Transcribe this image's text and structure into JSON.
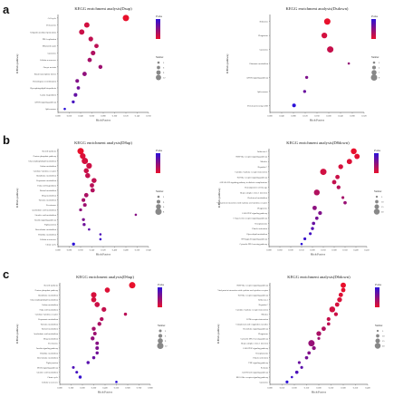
{
  "panel_letters": [
    "a",
    "b",
    "c"
  ],
  "chart_data": [
    {
      "type": "scatter",
      "title": "KEGG enrichment analysis(Dsup)",
      "xlabel": "Rich Factor",
      "ylabel": "KEGG pathway",
      "xlim": [
        0,
        0.16
      ],
      "xticks": [
        "0.000",
        "0.020",
        "0.040",
        "0.060",
        "0.080",
        "0.100",
        "0.120",
        "0.140",
        "0.160"
      ],
      "categories": [
        "Cell cycle",
        "Proteasome",
        "Ubiquitin mediated proteolysis",
        "DNA replication",
        "Mismatch repair",
        "Lysosome",
        "Cellular senescence",
        "Oocyte meiosis",
        "Basal transcription factors",
        "Homologous recombination",
        "Glycosphingolipid biosynthesis",
        "Lysine degradation",
        "mTOR signaling pathway",
        "Spliceosome"
      ],
      "x": [
        0.12,
        0.051,
        0.042,
        0.058,
        0.068,
        0.062,
        0.056,
        0.075,
        0.047,
        0.034,
        0.036,
        0.031,
        0.027,
        0.012
      ],
      "pvalue": [
        0.005,
        0.01,
        0.012,
        0.014,
        0.015,
        0.018,
        0.02,
        0.022,
        0.025,
        0.028,
        0.032,
        0.035,
        0.042,
        0.048
      ],
      "count": [
        15,
        12,
        12,
        10,
        9,
        10,
        9,
        8,
        9,
        7,
        6,
        7,
        5,
        3
      ],
      "legend_color_title": "Pvalue",
      "legend_size_title": "Number",
      "size_legend_values": [
        3,
        6,
        9,
        12
      ],
      "color_low": "#e8102c",
      "color_high": "#2b11d8",
      "legend_position": "right"
    },
    {
      "type": "scatter",
      "title": "KEGG enrichment analysis(Dsdown)",
      "xlabel": "Rich Factor",
      "ylabel": "KEGG pathway",
      "xlim": [
        0,
        0.32
      ],
      "xticks": [
        "0.000",
        "0.040",
        "0.080",
        "0.120",
        "0.160",
        "0.200",
        "0.240",
        "0.280",
        "0.320"
      ],
      "categories": [
        "Ribosome",
        "Phagosome",
        "Lysosome",
        "Glutamate metabolism",
        "mTOR signaling pathway",
        "Spliceosome",
        "Protein processing in ER"
      ],
      "x": [
        0.195,
        0.185,
        0.205,
        0.268,
        0.125,
        0.118,
        0.082
      ],
      "pvalue": [
        0.01,
        0.015,
        0.018,
        0.03,
        0.035,
        0.04,
        0.055
      ],
      "count": [
        9,
        8,
        9,
        3,
        4,
        4,
        5
      ],
      "legend_color_title": "Pvalue",
      "legend_size_title": "Number",
      "size_legend_values": [
        3,
        5,
        7,
        9
      ],
      "color_low": "#e8102c",
      "color_high": "#2b11d8",
      "legend_position": "right"
    },
    {
      "type": "scatter",
      "title": "KEGG enrichment analysis(D8up)",
      "xlabel": "Rich Factor",
      "ylabel": "KEGG pathway",
      "xlim": [
        0,
        0.64
      ],
      "xticks": [
        "0.000",
        "0.080",
        "0.160",
        "0.240",
        "0.320",
        "0.400",
        "0.480",
        "0.560",
        "0.640"
      ],
      "categories": [
        "Steroid synthesis",
        "Pentose phosphate pathway",
        "Glycerophospholipid metabolism",
        "Carbon metabolism",
        "Cytokine-cytokine receptor",
        "Glutathione metabolism",
        "Propanoate metabolism",
        "Fatty acid degradation",
        "Retinol metabolism",
        "Drug metabolism",
        "Tyrosine metabolism",
        "Peroxisome",
        "Arachidonic acid metabolism",
        "Linoleic acid metabolism",
        "Insulin signaling pathway",
        "Tight junction",
        "Beta-alanine metabolism",
        "Histidine metabolism",
        "Cellular senescence",
        "Citrate cycle"
      ],
      "x": [
        0.16,
        0.175,
        0.19,
        0.22,
        0.2,
        0.21,
        0.255,
        0.24,
        0.245,
        0.2,
        0.18,
        0.19,
        0.16,
        0.55,
        0.18,
        0.185,
        0.22,
        0.3,
        0.3,
        0.11
      ],
      "pvalue": [
        0.004,
        0.008,
        0.01,
        0.012,
        0.013,
        0.015,
        0.016,
        0.018,
        0.02,
        0.022,
        0.024,
        0.026,
        0.03,
        0.033,
        0.036,
        0.04,
        0.045,
        0.05,
        0.055,
        0.06
      ],
      "count": [
        8,
        7,
        8,
        7,
        6,
        6,
        6,
        5,
        5,
        5,
        4,
        4,
        3,
        2,
        3,
        3,
        2,
        2,
        2,
        3
      ],
      "legend_color_title": "Pvalue",
      "legend_size_title": "Number",
      "size_legend_values": [
        2,
        4,
        6,
        8
      ],
      "color_low": "#e8102c",
      "color_high": "#2b11d8",
      "legend_position": "right"
    },
    {
      "type": "scatter",
      "title": "KEGG enrichment analysis(D8down)",
      "xlabel": "Rich Factor",
      "ylabel": "KEGG pathway",
      "xlim": [
        0,
        0.45
      ],
      "xticks": [
        "0.000",
        "0.050",
        "0.100",
        "0.150",
        "0.200",
        "0.250",
        "0.300",
        "0.350",
        "0.400",
        "0.450"
      ],
      "categories": [
        "Influenza A",
        "NOD-like receptor signaling pathway",
        "Measles",
        "Hepatitis C",
        "Cytokine-cytokine receptor interaction",
        "Toll-like receptor signaling pathway",
        "AGE-RAGE signaling pathway in diabetic complications",
        "Hematopoietic cell lineage",
        "Herpes simplex virus 1 infection",
        "Cholesterol metabolism",
        "Viral protein interaction with cytokine and cytokine receptor",
        "Phagosome",
        "JAK-STAT signaling pathway",
        "C-type lectin receptor signaling pathway",
        "Toxoplasmosis",
        "Platelet activation",
        "Glycerolipid metabolism",
        "NF-kappa B signaling pathway",
        "Cytosolic DNA-sensing pathway"
      ],
      "x": [
        0.39,
        0.405,
        0.37,
        0.33,
        0.25,
        0.315,
        0.3,
        0.32,
        0.22,
        0.34,
        0.35,
        0.21,
        0.235,
        0.22,
        0.205,
        0.2,
        0.19,
        0.165,
        0.15
      ],
      "pvalue": [
        0.001,
        0.002,
        0.003,
        0.004,
        0.005,
        0.006,
        0.007,
        0.009,
        0.01,
        0.012,
        0.014,
        0.016,
        0.018,
        0.02,
        0.022,
        0.025,
        0.028,
        0.03,
        0.032
      ],
      "count": [
        20,
        18,
        18,
        16,
        22,
        14,
        14,
        12,
        20,
        8,
        10,
        14,
        12,
        10,
        10,
        9,
        8,
        8,
        6
      ],
      "legend_color_title": "Pvalue",
      "legend_size_title": "Number",
      "size_legend_values": [
        5,
        10,
        15,
        20
      ],
      "color_low": "#e8102c",
      "color_high": "#2b11d8",
      "legend_position": "right"
    },
    {
      "type": "scatter",
      "title": "KEGG enrichment analysis(D6up)",
      "xlabel": "Rich Factor",
      "ylabel": "KEGG pathway",
      "xlim": [
        0,
        0.8
      ],
      "xticks": [
        "0.000",
        "0.100",
        "0.200",
        "0.300",
        "0.400",
        "0.500",
        "0.600",
        "0.700",
        "0.800"
      ],
      "categories": [
        "Steroid synthesis",
        "Pentose phosphate pathway",
        "Glutathione metabolism",
        "Glycerophospholipid metabolism",
        "Carbon metabolism",
        "Fatty acid metabolism",
        "Cytokine-cytokine receptor",
        "Propanoate metabolism",
        "Tyrosine metabolism",
        "Retinol metabolism",
        "Arachidonic acid metabolism",
        "Drug metabolism",
        "Peroxisome",
        "Insulin signaling pathway",
        "Histidine metabolism",
        "Beta-alanine metabolism",
        "Tight junction",
        "PPAR signaling pathway",
        "Linoleic acid metabolism",
        "Citrate cycle",
        "Cellular senescence"
      ],
      "x": [
        0.64,
        0.42,
        0.3,
        0.3,
        0.33,
        0.39,
        0.58,
        0.37,
        0.35,
        0.3,
        0.31,
        0.29,
        0.33,
        0.33,
        0.33,
        0.3,
        0.25,
        0.12,
        0.15,
        0.18,
        0.5
      ],
      "pvalue": [
        0.002,
        0.005,
        0.007,
        0.008,
        0.01,
        0.012,
        0.015,
        0.017,
        0.019,
        0.021,
        0.023,
        0.026,
        0.029,
        0.032,
        0.035,
        0.038,
        0.042,
        0.045,
        0.048,
        0.052,
        0.055
      ],
      "count": [
        12,
        9,
        10,
        9,
        9,
        8,
        4,
        6,
        6,
        6,
        5,
        6,
        5,
        5,
        4,
        4,
        4,
        3,
        3,
        4,
        2
      ],
      "legend_color_title": "Pvalue",
      "legend_size_title": "Number",
      "size_legend_values": [
        3,
        6,
        9,
        12
      ],
      "color_low": "#e8102c",
      "color_high": "#2b11d8",
      "legend_position": "right"
    },
    {
      "type": "scatter",
      "title": "KEGG enrichment analysis(D6down)",
      "xlabel": "Rich Factor",
      "ylabel": "KEGG pathway",
      "xlim": [
        0,
        0.4
      ],
      "xticks": [
        "0.000",
        "0.050",
        "0.100",
        "0.150",
        "0.200",
        "0.250",
        "0.300",
        "0.350",
        "0.400"
      ],
      "categories": [
        "NOD-like receptor signaling pathway",
        "Viral protein interaction with cytokine and cytokine receptor",
        "Toll-like receptor signaling pathway",
        "Influenza A",
        "Hepatitis C",
        "Cytokine-cytokine receptor interaction",
        "Measles",
        "ECM-receptor interaction",
        "Complement and coagulation cascades",
        "Chemokine signaling pathway",
        "Phagosome",
        "Cytosolic DNA-sensing pathway",
        "Herpes simplex virus 1 infection",
        "JAK-STAT signaling pathway",
        "Toxoplasmosis",
        "Platelet activation",
        "TNF signaling pathway",
        "Pertussis",
        "AGE-RAGE signaling pathway",
        "RIG-I-like receptor signaling pathway",
        "Lysosome"
      ],
      "x": [
        0.3,
        0.3,
        0.29,
        0.285,
        0.275,
        0.255,
        0.27,
        0.24,
        0.24,
        0.22,
        0.2,
        0.2,
        0.17,
        0.18,
        0.16,
        0.15,
        0.12,
        0.13,
        0.11,
        0.09,
        0.07
      ],
      "pvalue": [
        0.001,
        0.002,
        0.003,
        0.004,
        0.005,
        0.006,
        0.007,
        0.008,
        0.01,
        0.012,
        0.014,
        0.016,
        0.018,
        0.02,
        0.022,
        0.025,
        0.027,
        0.03,
        0.033,
        0.037,
        0.04
      ],
      "count": [
        18,
        14,
        14,
        16,
        14,
        20,
        12,
        12,
        10,
        14,
        16,
        8,
        22,
        12,
        10,
        10,
        8,
        8,
        10,
        6,
        8
      ],
      "legend_color_title": "Pvalue",
      "legend_size_title": "Number",
      "size_legend_values": [
        5,
        10,
        15,
        20
      ],
      "color_low": "#e8102c",
      "color_high": "#2b11d8",
      "legend_position": "right"
    }
  ]
}
